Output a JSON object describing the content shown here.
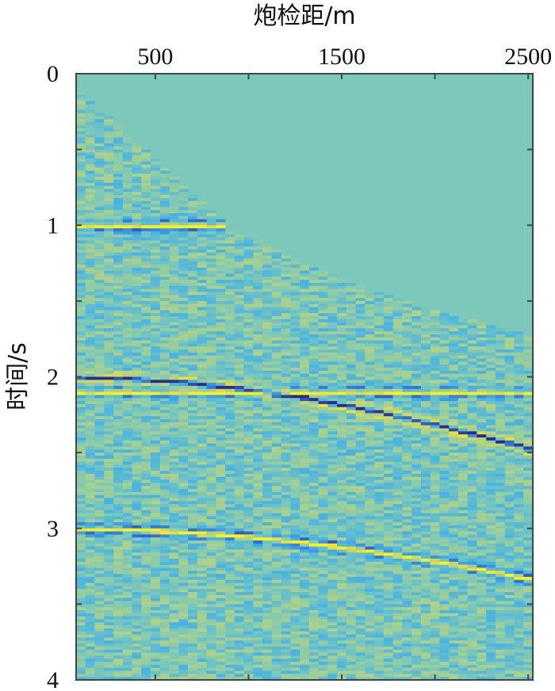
{
  "chart_data": {
    "type": "heatmap",
    "title": "",
    "xlabel": "炮检距/m",
    "ylabel": "时间/s",
    "x_axis_position": "top",
    "xlim": [
      75,
      2525
    ],
    "ylim": [
      0,
      4
    ],
    "y_reversed": true,
    "x_ticks": [
      500,
      1000,
      1500,
      2000,
      2500
    ],
    "x_tick_labels": [
      "500",
      "",
      "1500",
      "",
      "2500"
    ],
    "y_ticks": [
      0,
      0.5,
      1,
      1.5,
      2,
      2.5,
      3,
      3.5,
      4
    ],
    "y_tick_labels": [
      "0",
      "",
      "1",
      "",
      "2",
      "",
      "3",
      "",
      "4"
    ],
    "trace_offsets": {
      "first": 100,
      "last": 2500,
      "step": 50
    },
    "time_sampling": {
      "start": 0,
      "end": 4,
      "step": 0.02
    },
    "colormap": [
      "#2e2a8c",
      "#2f6fd8",
      "#45b1e6",
      "#7cc8ba",
      "#b2d284",
      "#e8dc3c",
      "#fbf21a"
    ],
    "value_range": [
      -1,
      1
    ],
    "mute_boundary": [
      {
        "offset": 75,
        "time": 0.1
      },
      {
        "offset": 500,
        "time": 0.56
      },
      {
        "offset": 900,
        "time": 1.02
      },
      {
        "offset": 1300,
        "time": 1.26
      },
      {
        "offset": 1700,
        "time": 1.44
      },
      {
        "offset": 2100,
        "time": 1.6
      },
      {
        "offset": 2525,
        "time": 1.72
      }
    ],
    "events": [
      {
        "type": "flat",
        "t0": 1.0,
        "polarity": 1,
        "muted": true
      },
      {
        "type": "hyperbolic",
        "t0": 2.0,
        "velocity": 1725,
        "polarity": -1,
        "muted": false
      },
      {
        "type": "flat",
        "t0": 2.1,
        "polarity": 0.9,
        "muted": false
      },
      {
        "type": "hyperbolic",
        "t0": 3.0,
        "velocity": 1730,
        "polarity": 1,
        "muted": false
      }
    ],
    "noise_amplitude": 0.32
  }
}
